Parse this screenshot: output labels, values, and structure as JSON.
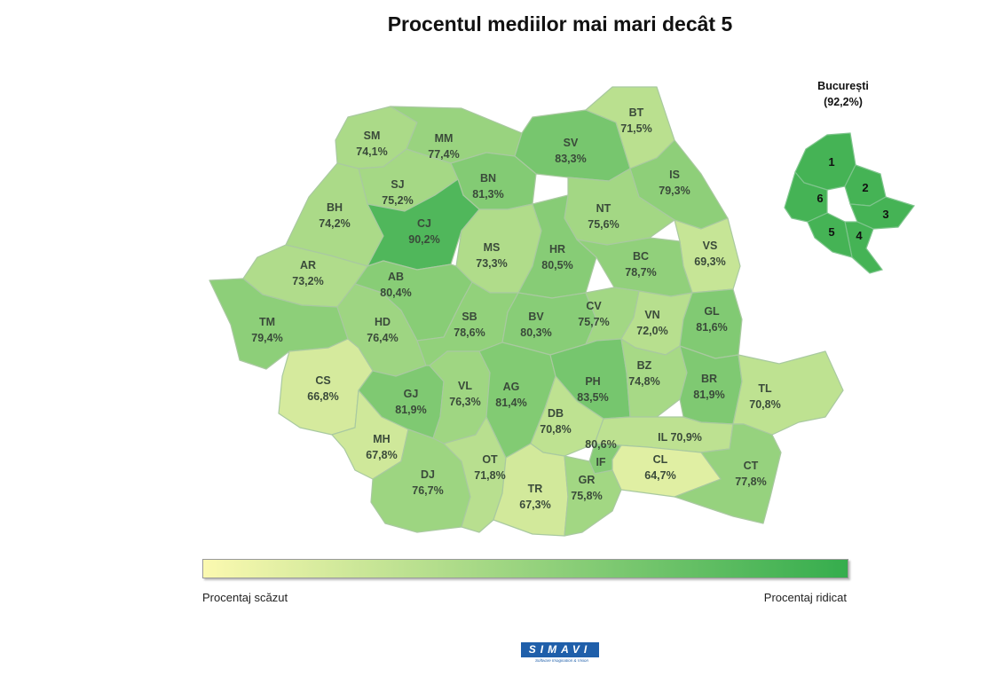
{
  "title": "Procentul mediilor mai mari decât 5",
  "colors": {
    "low": "#fbf9b0",
    "high": "#35ad4d",
    "border": "#a9c9a0"
  },
  "bucuresti": {
    "name": "București",
    "value_text": "(92,2%)",
    "value": 92.2,
    "sectors": [
      "1",
      "2",
      "3",
      "4",
      "5",
      "6"
    ]
  },
  "counties": [
    {
      "code": "SM",
      "value_text": "74,1%",
      "value": 74.1
    },
    {
      "code": "MM",
      "value_text": "77,4%",
      "value": 77.4
    },
    {
      "code": "SV",
      "value_text": "83,3%",
      "value": 83.3
    },
    {
      "code": "BT",
      "value_text": "71,5%",
      "value": 71.5
    },
    {
      "code": "SJ",
      "value_text": "75,2%",
      "value": 75.2
    },
    {
      "code": "BN",
      "value_text": "81,3%",
      "value": 81.3
    },
    {
      "code": "IS",
      "value_text": "79,3%",
      "value": 79.3
    },
    {
      "code": "BH",
      "value_text": "74,2%",
      "value": 74.2
    },
    {
      "code": "CJ",
      "value_text": "90,2%",
      "value": 90.2
    },
    {
      "code": "NT",
      "value_text": "75,6%",
      "value": 75.6
    },
    {
      "code": "VS",
      "value_text": "69,3%",
      "value": 69.3
    },
    {
      "code": "AR",
      "value_text": "73,2%",
      "value": 73.2
    },
    {
      "code": "MS",
      "value_text": "73,3%",
      "value": 73.3
    },
    {
      "code": "HR",
      "value_text": "80,5%",
      "value": 80.5
    },
    {
      "code": "BC",
      "value_text": "78,7%",
      "value": 78.7
    },
    {
      "code": "AB",
      "value_text": "80,4%",
      "value": 80.4
    },
    {
      "code": "TM",
      "value_text": "79,4%",
      "value": 79.4
    },
    {
      "code": "HD",
      "value_text": "76,4%",
      "value": 76.4
    },
    {
      "code": "SB",
      "value_text": "78,6%",
      "value": 78.6
    },
    {
      "code": "BV",
      "value_text": "80,3%",
      "value": 80.3
    },
    {
      "code": "CV",
      "value_text": "75,7%",
      "value": 75.7
    },
    {
      "code": "VN",
      "value_text": "72,0%",
      "value": 72.0
    },
    {
      "code": "GL",
      "value_text": "81,6%",
      "value": 81.6
    },
    {
      "code": "CS",
      "value_text": "66,8%",
      "value": 66.8
    },
    {
      "code": "GJ",
      "value_text": "81,9%",
      "value": 81.9
    },
    {
      "code": "VL",
      "value_text": "76,3%",
      "value": 76.3
    },
    {
      "code": "AG",
      "value_text": "81,4%",
      "value": 81.4
    },
    {
      "code": "PH",
      "value_text": "83,5%",
      "value": 83.5
    },
    {
      "code": "BZ",
      "value_text": "74,8%",
      "value": 74.8
    },
    {
      "code": "BR",
      "value_text": "81,9%",
      "value": 81.9
    },
    {
      "code": "TL",
      "value_text": "70,8%",
      "value": 70.8
    },
    {
      "code": "MH",
      "value_text": "67,8%",
      "value": 67.8
    },
    {
      "code": "DB",
      "value_text": "70,8%",
      "value": 70.8
    },
    {
      "code": "IL",
      "value_text": "70,9%",
      "value": 70.9
    },
    {
      "code": "IF",
      "value_text": "80,6%",
      "value": 80.6
    },
    {
      "code": "DJ",
      "value_text": "76,7%",
      "value": 76.7
    },
    {
      "code": "OT",
      "value_text": "71,8%",
      "value": 71.8
    },
    {
      "code": "TR",
      "value_text": "67,3%",
      "value": 67.3
    },
    {
      "code": "GR",
      "value_text": "75,8%",
      "value": 75.8
    },
    {
      "code": "CL",
      "value_text": "64,7%",
      "value": 64.7
    },
    {
      "code": "CT",
      "value_text": "77,8%",
      "value": 77.8
    }
  ],
  "legend": {
    "low_label": "Procentaj scăzut",
    "high_label": "Procentaj ridicat"
  },
  "logo": {
    "text": "SIMAVI",
    "tagline": "Software Imagination & Vision"
  }
}
